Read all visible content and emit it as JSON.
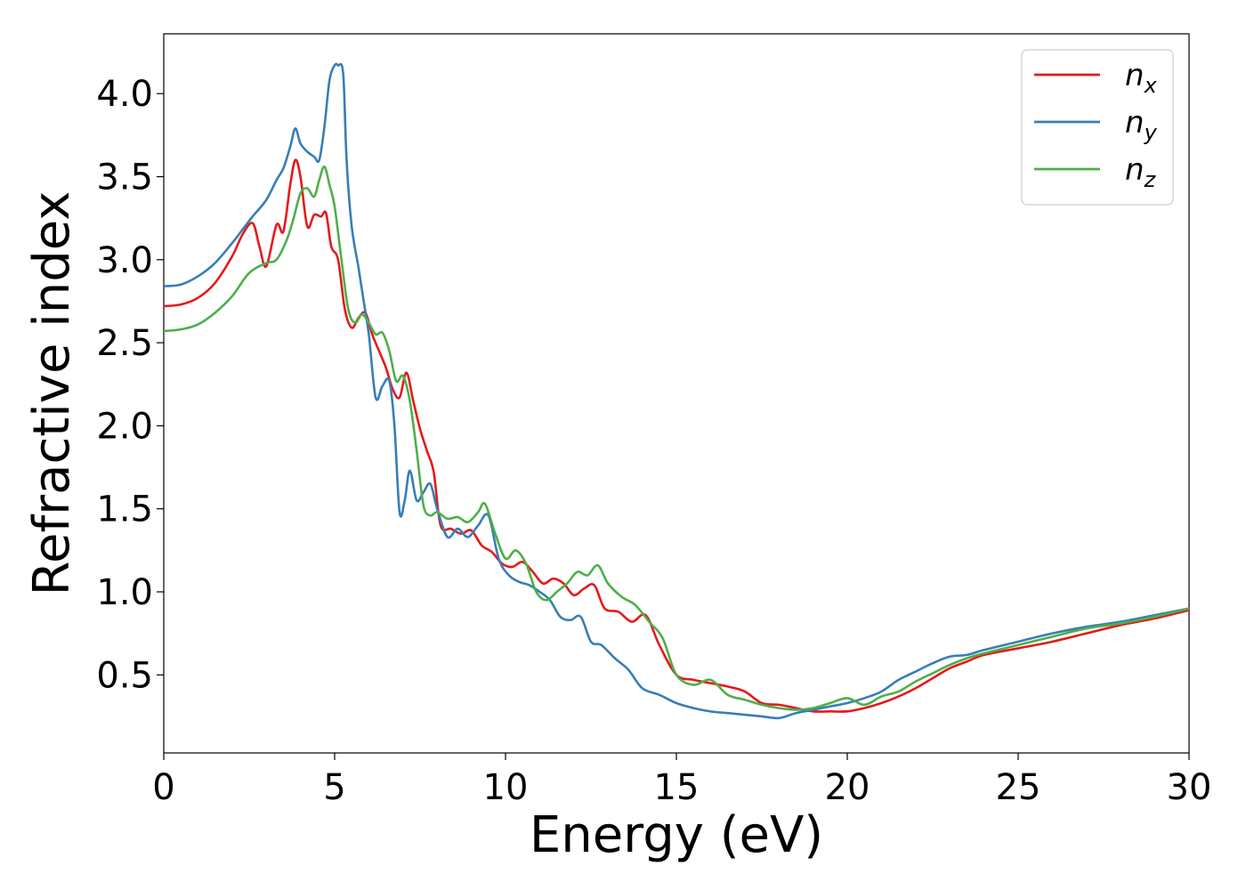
{
  "chart_data": {
    "type": "line",
    "title": "",
    "xlabel": "Energy (eV)",
    "ylabel": "Refractive index",
    "xlim": [
      0,
      30
    ],
    "ylim": [
      0.03,
      4.36
    ],
    "xticks": [
      0,
      5,
      10,
      15,
      20,
      25,
      30
    ],
    "xtick_labels": [
      "0",
      "5",
      "10",
      "15",
      "20",
      "25",
      "30"
    ],
    "yticks": [
      0.5,
      1.0,
      1.5,
      2.0,
      2.5,
      3.0,
      3.5,
      4.0
    ],
    "ytick_labels": [
      "0.5",
      "1.0",
      "1.5",
      "2.0",
      "2.5",
      "3.0",
      "3.5",
      "4.0"
    ],
    "grid": false,
    "legend_position": "top-right",
    "series": [
      {
        "name": "n_x",
        "base": "n",
        "sub": "x",
        "color": "#e41a1c",
        "x": [
          0,
          0.5,
          1,
          1.5,
          2,
          2.3,
          2.6,
          2.8,
          3.0,
          3.3,
          3.5,
          3.7,
          3.85,
          4.0,
          4.2,
          4.4,
          4.6,
          4.75,
          4.9,
          5.1,
          5.3,
          5.5,
          5.7,
          5.9,
          6.1,
          6.3,
          6.5,
          6.7,
          6.9,
          7.1,
          7.3,
          7.5,
          7.7,
          7.9,
          8.1,
          8.4,
          8.7,
          9.0,
          9.3,
          9.6,
          9.9,
          10.2,
          10.5,
          10.8,
          11.1,
          11.4,
          11.7,
          12.0,
          12.3,
          12.6,
          12.9,
          13.3,
          13.7,
          14.1,
          14.5,
          15.0,
          15.5,
          16.0,
          16.5,
          17.0,
          17.5,
          18.0,
          18.5,
          19.0,
          19.5,
          20.0,
          20.5,
          21.0,
          21.5,
          22.0,
          22.5,
          23.0,
          23.5,
          24.0,
          25.0,
          26.0,
          27.0,
          28.0,
          29.0,
          30.0
        ],
        "y": [
          2.72,
          2.73,
          2.77,
          2.86,
          3.02,
          3.15,
          3.22,
          3.08,
          2.96,
          3.21,
          3.17,
          3.45,
          3.6,
          3.5,
          3.2,
          3.27,
          3.26,
          3.28,
          3.08,
          3.0,
          2.7,
          2.59,
          2.65,
          2.68,
          2.55,
          2.45,
          2.35,
          2.22,
          2.17,
          2.32,
          2.15,
          1.98,
          1.85,
          1.72,
          1.4,
          1.38,
          1.35,
          1.37,
          1.28,
          1.24,
          1.17,
          1.15,
          1.18,
          1.12,
          1.05,
          1.08,
          1.05,
          0.98,
          1.02,
          1.04,
          0.9,
          0.88,
          0.82,
          0.86,
          0.68,
          0.5,
          0.47,
          0.45,
          0.43,
          0.4,
          0.33,
          0.32,
          0.3,
          0.28,
          0.28,
          0.28,
          0.3,
          0.33,
          0.37,
          0.42,
          0.48,
          0.54,
          0.58,
          0.62,
          0.66,
          0.7,
          0.75,
          0.8,
          0.84,
          0.89
        ]
      },
      {
        "name": "n_y",
        "base": "n",
        "sub": "y",
        "color": "#377eb8",
        "x": [
          0,
          0.5,
          1,
          1.5,
          2,
          2.3,
          2.6,
          3.0,
          3.3,
          3.5,
          3.7,
          3.85,
          4.0,
          4.2,
          4.4,
          4.55,
          4.7,
          4.85,
          5.0,
          5.1,
          5.25,
          5.35,
          5.5,
          5.7,
          5.85,
          6.0,
          6.2,
          6.4,
          6.6,
          6.75,
          6.9,
          7.05,
          7.2,
          7.4,
          7.6,
          7.8,
          8.0,
          8.3,
          8.6,
          8.9,
          9.2,
          9.5,
          9.8,
          10.1,
          10.4,
          10.7,
          11.0,
          11.3,
          11.6,
          11.9,
          12.2,
          12.5,
          12.8,
          13.2,
          13.6,
          14.0,
          14.5,
          15.0,
          15.5,
          16.0,
          16.5,
          17.0,
          17.5,
          18.0,
          18.5,
          19.0,
          19.5,
          20.0,
          20.5,
          21.0,
          21.5,
          22.0,
          22.5,
          23.0,
          23.5,
          24.0,
          25.0,
          26.0,
          27.0,
          28.0,
          29.0,
          30.0
        ],
        "y": [
          2.84,
          2.85,
          2.9,
          2.98,
          3.1,
          3.18,
          3.26,
          3.36,
          3.48,
          3.55,
          3.68,
          3.79,
          3.7,
          3.65,
          3.62,
          3.6,
          3.8,
          4.08,
          4.17,
          4.17,
          4.12,
          3.6,
          3.2,
          2.95,
          2.75,
          2.55,
          2.17,
          2.24,
          2.27,
          2.0,
          1.48,
          1.55,
          1.73,
          1.55,
          1.6,
          1.65,
          1.5,
          1.33,
          1.38,
          1.33,
          1.4,
          1.46,
          1.2,
          1.1,
          1.06,
          1.04,
          1.0,
          0.95,
          0.85,
          0.83,
          0.85,
          0.7,
          0.68,
          0.6,
          0.53,
          0.42,
          0.38,
          0.33,
          0.3,
          0.28,
          0.27,
          0.26,
          0.25,
          0.24,
          0.27,
          0.29,
          0.31,
          0.33,
          0.36,
          0.4,
          0.47,
          0.52,
          0.57,
          0.61,
          0.62,
          0.65,
          0.7,
          0.75,
          0.79,
          0.82,
          0.86,
          0.9
        ]
      },
      {
        "name": "n_z",
        "base": "n",
        "sub": "z",
        "color": "#4daf4a",
        "x": [
          0,
          0.5,
          1,
          1.5,
          2,
          2.5,
          3.0,
          3.3,
          3.6,
          3.8,
          4.0,
          4.2,
          4.4,
          4.55,
          4.7,
          4.85,
          5.0,
          5.2,
          5.4,
          5.6,
          5.8,
          6.0,
          6.2,
          6.4,
          6.6,
          6.8,
          7.0,
          7.2,
          7.4,
          7.6,
          7.8,
          8.0,
          8.3,
          8.6,
          8.9,
          9.2,
          9.4,
          9.7,
          10.0,
          10.3,
          10.6,
          10.9,
          11.2,
          11.5,
          11.8,
          12.1,
          12.4,
          12.7,
          13.0,
          13.4,
          13.8,
          14.2,
          14.6,
          15.0,
          15.5,
          16.0,
          16.5,
          17.0,
          17.5,
          18.0,
          18.5,
          19.0,
          19.5,
          20.0,
          20.5,
          21.0,
          21.5,
          22.0,
          22.5,
          23.0,
          23.5,
          24.0,
          25.0,
          26.0,
          27.0,
          28.0,
          29.0,
          30.0
        ],
        "y": [
          2.57,
          2.58,
          2.61,
          2.68,
          2.78,
          2.92,
          2.98,
          3.0,
          3.12,
          3.25,
          3.4,
          3.43,
          3.38,
          3.48,
          3.56,
          3.45,
          3.32,
          3.0,
          2.7,
          2.62,
          2.67,
          2.62,
          2.55,
          2.56,
          2.45,
          2.27,
          2.3,
          2.15,
          1.85,
          1.52,
          1.46,
          1.48,
          1.44,
          1.45,
          1.42,
          1.48,
          1.53,
          1.35,
          1.2,
          1.25,
          1.17,
          1.0,
          0.95,
          1.0,
          1.05,
          1.12,
          1.1,
          1.16,
          1.05,
          0.97,
          0.92,
          0.82,
          0.72,
          0.5,
          0.44,
          0.47,
          0.38,
          0.35,
          0.32,
          0.3,
          0.29,
          0.3,
          0.33,
          0.36,
          0.32,
          0.37,
          0.4,
          0.46,
          0.51,
          0.56,
          0.6,
          0.63,
          0.68,
          0.73,
          0.78,
          0.81,
          0.85,
          0.9
        ]
      }
    ]
  }
}
